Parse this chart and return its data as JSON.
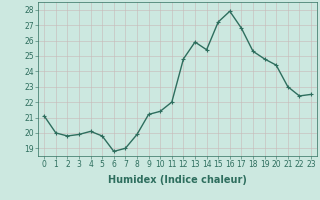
{
  "x": [
    0,
    1,
    2,
    3,
    4,
    5,
    6,
    7,
    8,
    9,
    10,
    11,
    12,
    13,
    14,
    15,
    16,
    17,
    18,
    19,
    20,
    21,
    22,
    23
  ],
  "y": [
    21.1,
    20.0,
    19.8,
    19.9,
    20.1,
    19.8,
    18.8,
    19.0,
    19.9,
    21.2,
    21.4,
    22.0,
    24.8,
    25.9,
    25.4,
    27.2,
    27.9,
    26.8,
    25.3,
    24.8,
    24.4,
    23.0,
    22.4,
    22.5
  ],
  "line_color": "#2e6e5e",
  "marker": "+",
  "marker_size": 3,
  "line_width": 1.0,
  "bg_color": "#cce8e0",
  "grid_color": "#b0cfc8",
  "xlabel": "Humidex (Indice chaleur)",
  "xlabel_weight": "bold",
  "ylim": [
    18.5,
    28.5
  ],
  "yticks": [
    19,
    20,
    21,
    22,
    23,
    24,
    25,
    26,
    27,
    28
  ],
  "xticks": [
    0,
    1,
    2,
    3,
    4,
    5,
    6,
    7,
    8,
    9,
    10,
    11,
    12,
    13,
    14,
    15,
    16,
    17,
    18,
    19,
    20,
    21,
    22,
    23
  ],
  "tick_fontsize": 5.5,
  "xlabel_fontsize": 7.0
}
